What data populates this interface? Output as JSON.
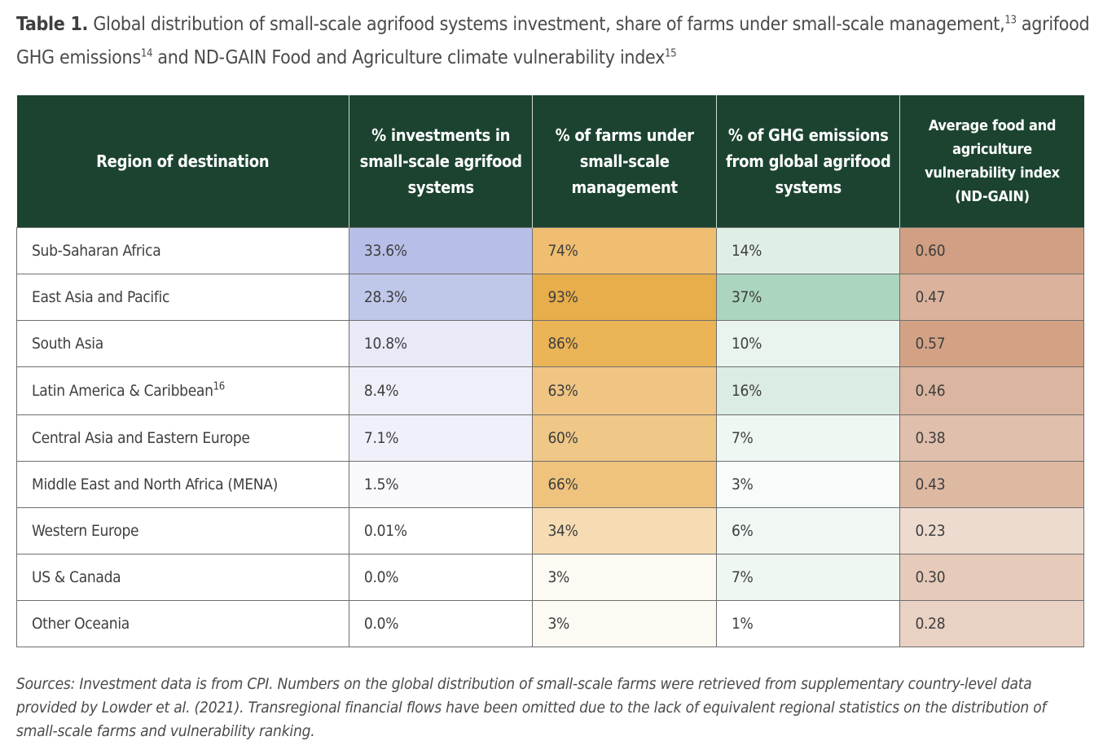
{
  "caption": {
    "label": "Table 1.",
    "text_1": " Global distribution of small-scale agrifood systems investment, share of farms under small-scale management,",
    "ref_1": "13",
    "text_2": " agrifood GHG emissions",
    "ref_2": "14",
    "text_3": " and ND-GAIN Food and Agriculture climate vulnerability index",
    "ref_3": "15"
  },
  "table": {
    "header_color": "#1b4330",
    "columns": [
      "Region of destination",
      "% investments in small-scale agrifood systems",
      "% of farms under small-scale management",
      "% of GHG emissions from global agrifood systems",
      "Average food and agriculture vulnerability index (ND-GAIN)"
    ],
    "rows": [
      {
        "region": "Sub-Saharan Africa",
        "ref": "",
        "inv": "33.6%",
        "farms": "74%",
        "ghg": "14%",
        "index": "0.60",
        "colors": [
          "#b7bfe8",
          "#efbe70",
          "#e0efe6",
          "#d19f83"
        ]
      },
      {
        "region": "East Asia and Pacific",
        "ref": "",
        "inv": "28.3%",
        "farms": "93%",
        "ghg": "37%",
        "index": "0.47",
        "colors": [
          "#c0c8ea",
          "#e8ae4b",
          "#abd5be",
          "#dbb39d"
        ]
      },
      {
        "region": "South Asia",
        "ref": "",
        "inv": "10.8%",
        "farms": "86%",
        "ghg": "10%",
        "index": "0.57",
        "colors": [
          "#e9eaf8",
          "#eab457",
          "#e9f4ee",
          "#d3a285"
        ]
      },
      {
        "region": "Latin America & Caribbean",
        "ref": "16",
        "inv": "8.4%",
        "farms": "63%",
        "ghg": "16%",
        "index": "0.46",
        "colors": [
          "#efeff9",
          "#f0c583",
          "#dbece2",
          "#dbb59f"
        ]
      },
      {
        "region": "Central Asia and Eastern Europe",
        "ref": "",
        "inv": "7.1%",
        "farms": "60%",
        "ghg": "7%",
        "index": "0.38",
        "colors": [
          "#f0f0fa",
          "#efc786",
          "#eff7f2",
          "#e0bfad"
        ]
      },
      {
        "region": "Middle East and North Africa (MENA)",
        "ref": "",
        "inv": "1.5%",
        "farms": "66%",
        "ghg": "3%",
        "index": "0.43",
        "colors": [
          "#f9f9fd",
          "#efc37e",
          "#f7fbf9",
          "#ddb9a2"
        ]
      },
      {
        "region": "Western Europe",
        "ref": "",
        "inv": "0.01%",
        "farms": "34%",
        "ghg": "6%",
        "index": "0.23",
        "colors": [
          "#ffffff",
          "#f6dcb3",
          "#f1f8f4",
          "#eddbd0"
        ]
      },
      {
        "region": "US & Canada",
        "ref": "",
        "inv": "0.0%",
        "farms": "3%",
        "ghg": "7%",
        "index": "0.30",
        "colors": [
          "#ffffff",
          "#fdf9f3",
          "#eff7f2",
          "#e6cbba"
        ]
      },
      {
        "region": "Other Oceania",
        "ref": "",
        "inv": "0.0%",
        "farms": "3%",
        "ghg": "1%",
        "index": "0.28",
        "colors": [
          "#ffffff",
          "#fdf9f3",
          "#ffffff",
          "#e9d1c3"
        ]
      }
    ]
  },
  "sources": "Sources: Investment data is from CPI. Numbers on the global distribution of small-scale farms were retrieved from supplementary country-level data provided by Lowder et al. (2021). Transregional financial flows have been omitted due to the lack of equivalent regional statistics on the distribution of small-scale farms and vulnerability ranking."
}
